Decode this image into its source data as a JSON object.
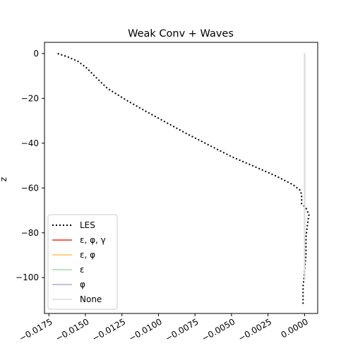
{
  "chart_data": {
    "type": "line",
    "title": "Weak Conv + Waves",
    "xlabel": "",
    "ylabel": "z",
    "xlim": [
      -0.0178,
      0.0009
    ],
    "ylim": [
      -116,
      5
    ],
    "xticks": [
      -0.0175,
      -0.015,
      -0.0125,
      -0.01,
      -0.0075,
      -0.005,
      -0.0025,
      0.0
    ],
    "xtick_labels": [
      "−0.0175",
      "−0.0150",
      "−0.0125",
      "−0.0100",
      "−0.0075",
      "−0.0050",
      "−0.0025",
      "0.0000"
    ],
    "yticks": [
      0,
      -20,
      -40,
      -60,
      -80,
      -100
    ],
    "ytick_labels": [
      "0",
      "−20",
      "−40",
      "−60",
      "−80",
      "−100"
    ],
    "grid": false,
    "legend_position": "lower-left",
    "series": [
      {
        "name": "LES",
        "color": "#000000",
        "style": "dotted",
        "points": [
          [
            -0.0169,
            0
          ],
          [
            -0.0162,
            -1.5
          ],
          [
            -0.0155,
            -3.5
          ],
          [
            -0.0149,
            -6.5
          ],
          [
            -0.0143,
            -10.5
          ],
          [
            -0.0135,
            -15.5
          ],
          [
            -0.0122,
            -20.8
          ],
          [
            -0.0108,
            -26
          ],
          [
            -0.0094,
            -31
          ],
          [
            -0.008,
            -36
          ],
          [
            -0.0065,
            -41
          ],
          [
            -0.005,
            -46
          ],
          [
            -0.0034,
            -50.5
          ],
          [
            -0.002,
            -54.5
          ],
          [
            -0.0008,
            -58.5
          ],
          [
            -0.0003,
            -61
          ],
          [
            -0.0002,
            -63
          ],
          [
            -0.0002,
            -67
          ],
          [
            0.0001,
            -69
          ],
          [
            0.0003,
            -72
          ],
          [
            0.0002,
            -76
          ],
          [
            0.0001,
            -82
          ],
          [
            0.0001,
            -90
          ],
          [
            0.0,
            -97
          ],
          [
            -0.0001,
            -104
          ],
          [
            -0.0001,
            -108
          ],
          [
            -0.0001,
            -112
          ]
        ]
      },
      {
        "name": "ε, φ, γ",
        "color": "#ff2a12",
        "style": "solid",
        "points": [
          [
            0.0,
            0
          ],
          [
            0.0,
            -101
          ]
        ]
      },
      {
        "name": "ε, φ",
        "color": "#fbc45b",
        "style": "solid",
        "points": [
          [
            0.0,
            0
          ],
          [
            0.0,
            -101
          ]
        ]
      },
      {
        "name": "ε",
        "color": "#a8d8a8",
        "style": "solid",
        "points": [
          [
            0.0,
            0
          ],
          [
            0.0,
            -101
          ]
        ]
      },
      {
        "name": "φ",
        "color": "#b3a6dd",
        "style": "solid",
        "points": [
          [
            0.0,
            0
          ],
          [
            0.0,
            -101
          ]
        ]
      },
      {
        "name": "None",
        "color": "#dddddd",
        "style": "solid",
        "points": [
          [
            0.0,
            0
          ],
          [
            0.0,
            -101
          ]
        ]
      }
    ]
  }
}
